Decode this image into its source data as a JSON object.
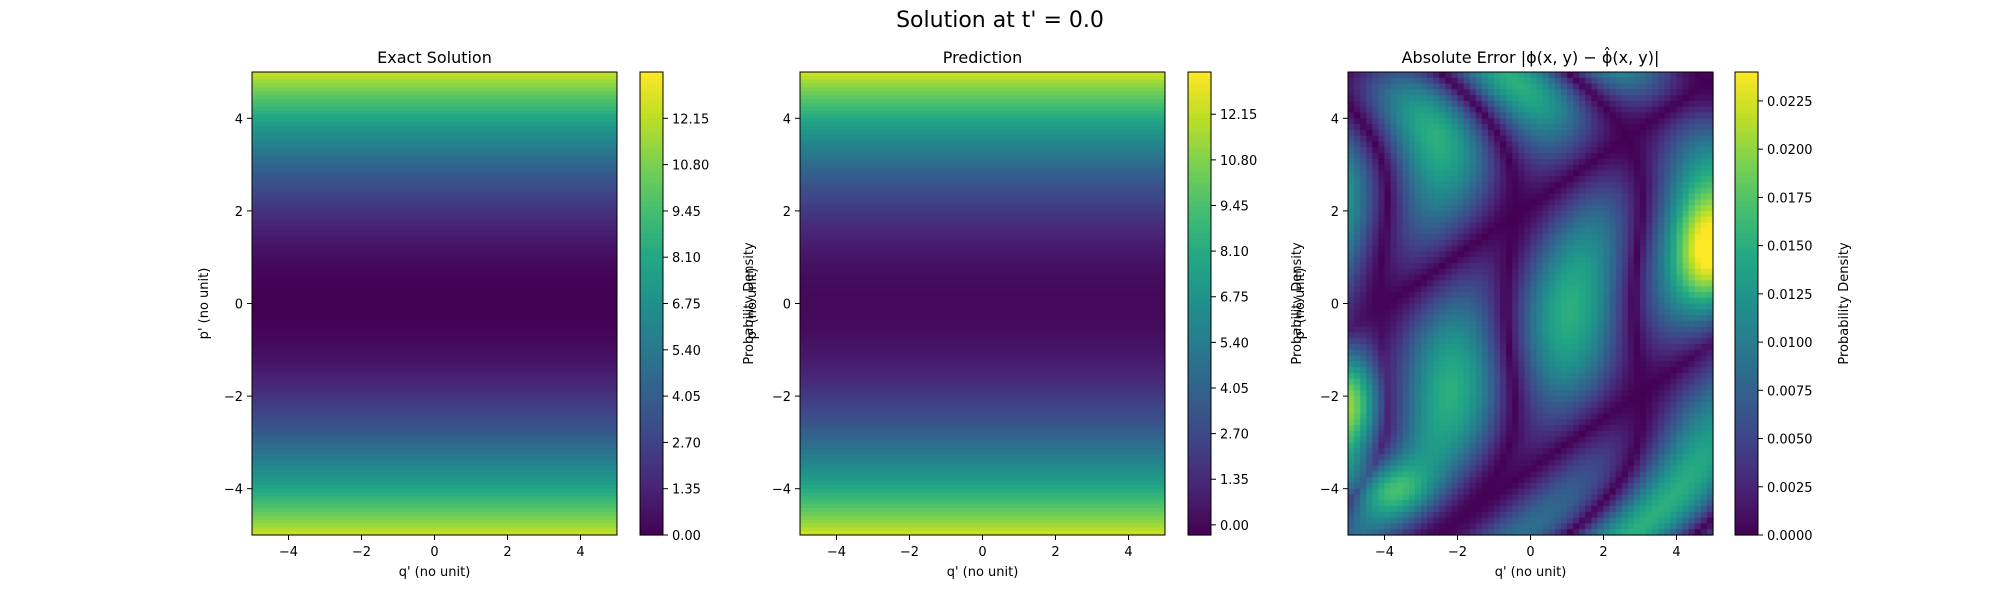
{
  "figure": {
    "suptitle": "Solution at t' = 0.0"
  },
  "chart_data": [
    {
      "type": "heatmap",
      "title": "Exact Solution",
      "xlabel": "q' (no unit)",
      "ylabel": "p' (no unit)",
      "xlim": [
        -5,
        5
      ],
      "ylim": [
        -5,
        5
      ],
      "xticks": [
        -4,
        -2,
        0,
        2,
        4
      ],
      "yticks": [
        -4,
        -2,
        0,
        2,
        4
      ],
      "xtick_labels": [
        "−4",
        "−2",
        "0",
        "2",
        "4"
      ],
      "ytick_labels": [
        "−4",
        "−2",
        "0",
        "2",
        "4"
      ],
      "colormap": "viridis",
      "field": "p'^2/2",
      "colorbar": {
        "label": "Probability Density",
        "range": [
          0,
          13.5
        ],
        "ticks": [
          0,
          1.35,
          2.7,
          4.05,
          5.4,
          6.75,
          8.1,
          9.45,
          10.8,
          12.15
        ],
        "tick_labels": [
          "0.00",
          "1.35",
          "2.70",
          "4.05",
          "5.40",
          "6.75",
          "8.10",
          "9.45",
          "10.80",
          "12.15"
        ]
      }
    },
    {
      "type": "heatmap",
      "title": "Prediction",
      "xlabel": "q' (no unit)",
      "ylabel": "p' (no unit)",
      "xlim": [
        -5,
        5
      ],
      "ylim": [
        -5,
        5
      ],
      "xticks": [
        -4,
        -2,
        0,
        2,
        4
      ],
      "yticks": [
        -4,
        -2,
        0,
        2,
        4
      ],
      "xtick_labels": [
        "−4",
        "−2",
        "0",
        "2",
        "4"
      ],
      "ytick_labels": [
        "−4",
        "−2",
        "0",
        "2",
        "4"
      ],
      "colormap": "viridis",
      "field": "p'^2/2",
      "colorbar": {
        "label": "Probability Density",
        "range": [
          -0.3,
          13.4
        ],
        "ticks": [
          0,
          1.35,
          2.7,
          4.05,
          5.4,
          6.75,
          8.1,
          9.45,
          10.8,
          12.15
        ],
        "tick_labels": [
          "0.00",
          "1.35",
          "2.70",
          "4.05",
          "5.40",
          "6.75",
          "8.10",
          "9.45",
          "10.80",
          "12.15"
        ]
      }
    },
    {
      "type": "heatmap",
      "title": "Absolute Error |ϕ(x, y) − ϕ̂(x, y)|",
      "xlabel": "q' (no unit)",
      "ylabel": "p' (no unit)",
      "xlim": [
        -5,
        5
      ],
      "ylim": [
        -5,
        5
      ],
      "xticks": [
        -4,
        -2,
        0,
        2,
        4
      ],
      "yticks": [
        -4,
        -2,
        0,
        2,
        4
      ],
      "xtick_labels": [
        "−4",
        "−2",
        "0",
        "2",
        "4"
      ],
      "ytick_labels": [
        "−4",
        "−2",
        "0",
        "2",
        "4"
      ],
      "colormap": "viridis",
      "field": "irregular error field, max near right edge at p'≈1 and left edge at p'≈-2",
      "colorbar": {
        "label": "Probability Density",
        "range": [
          0,
          0.024
        ],
        "ticks": [
          0,
          0.0025,
          0.005,
          0.0075,
          0.01,
          0.0125,
          0.015,
          0.0175,
          0.02,
          0.0225
        ],
        "tick_labels": [
          "0.0000",
          "0.0025",
          "0.0050",
          "0.0075",
          "0.0100",
          "0.0125",
          "0.0150",
          "0.0175",
          "0.0200",
          "0.0225"
        ]
      }
    }
  ]
}
